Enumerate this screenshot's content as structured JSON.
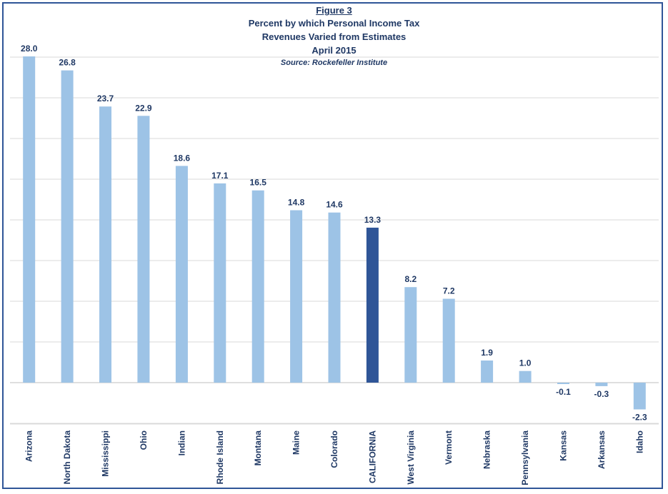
{
  "chart_data": {
    "type": "bar",
    "figure_label": "Figure 3",
    "title_lines": [
      "Percent by which Personal Income Tax",
      "Revenues Varied from Estimates",
      "April 2015"
    ],
    "source": "Source: Rockefeller Institute",
    "categories": [
      "Arizona",
      "North Dakota",
      "Mississippi",
      "Ohio",
      "Indian",
      "Rhode Island",
      "Montana",
      "Maine",
      "Colorado",
      "CALIFORNIA",
      "West Virginia",
      "Vermont",
      "Nebraska",
      "Pennsylvania",
      "Kansas",
      "Arkansas",
      "Idaho"
    ],
    "values": [
      28.0,
      26.8,
      23.7,
      22.9,
      18.6,
      17.1,
      16.5,
      14.8,
      14.6,
      13.3,
      8.2,
      7.2,
      1.9,
      1.0,
      -0.1,
      -0.3,
      -2.3
    ],
    "value_labels": [
      "28.0",
      "26.8",
      "23.7",
      "22.9",
      "18.6",
      "17.1",
      "16.5",
      "14.8",
      "14.6",
      "13.3",
      "8.2",
      "7.2",
      "1.9",
      "1.0",
      "-0.1",
      "-0.3",
      "-2.3"
    ],
    "highlight": "CALIFORNIA",
    "colors": {
      "bar": "#9dc3e6",
      "highlight": "#2f5597",
      "grid": "#d9d9d9",
      "text": "#1f3864",
      "border": "#2f5597"
    },
    "ylim": [
      -3.5,
      28
    ],
    "grid": true,
    "legend": "none"
  }
}
